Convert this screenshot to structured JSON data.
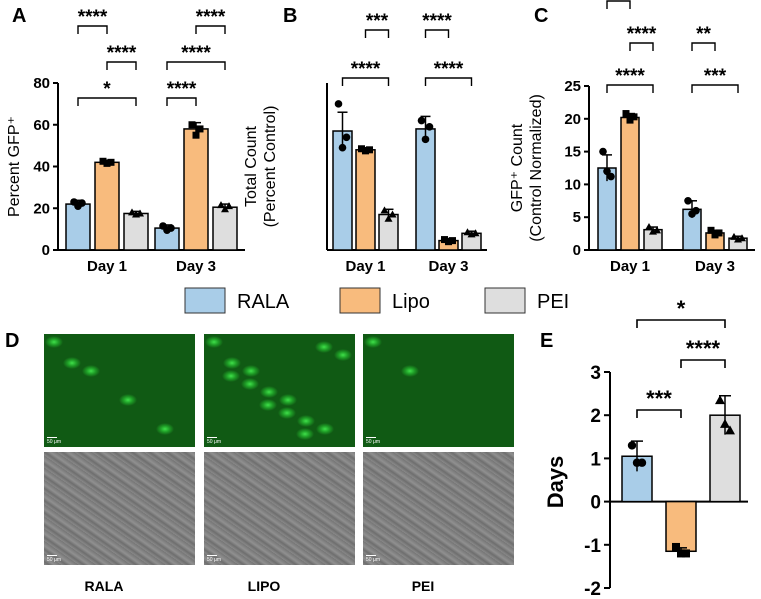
{
  "colors": {
    "rala": "#a9cde8",
    "lipo": "#f8bb7d",
    "pei": "#dedede"
  },
  "legend": [
    {
      "label": "RALA",
      "color": "#a9cde8"
    },
    {
      "label": "Lipo",
      "color": "#f8bb7d"
    },
    {
      "label": "PEI",
      "color": "#dedede"
    }
  ],
  "chart_data": [
    {
      "panel": "A",
      "type": "bar",
      "ylabel": "Percent GFP⁺",
      "ylim": [
        0,
        80
      ],
      "yticks": [
        0,
        20,
        40,
        60,
        80
      ],
      "categories": [
        "Day 1",
        "Day 3"
      ],
      "series": [
        {
          "name": "RALA",
          "values": [
            22,
            10.5
          ],
          "err": [
            1.8,
            1.5
          ],
          "points": [
            [
              23,
              21,
              22.5
            ],
            [
              11.5,
              9.5,
              10.5
            ]
          ]
        },
        {
          "name": "Lipo",
          "values": [
            42,
            58
          ],
          "err": [
            1,
            3
          ],
          "points": [
            [
              42.5,
              41.5,
              42
            ],
            [
              60,
              55,
              58
            ]
          ]
        },
        {
          "name": "PEI",
          "values": [
            17.5,
            20.5
          ],
          "err": [
            1,
            1.5
          ],
          "points": [
            [
              18,
              17,
              17.5
            ],
            [
              21.5,
              19.5,
              21
            ]
          ]
        }
      ],
      "significance": [
        {
          "group": 0,
          "from": 0,
          "to": 2,
          "label": "*"
        },
        {
          "group": 0,
          "from": 1,
          "to": 2,
          "label": "****"
        },
        {
          "group": 0,
          "from": 0,
          "to": 1,
          "label": "****"
        },
        {
          "group": 1,
          "from": 0,
          "to": 1,
          "label": "****"
        },
        {
          "group": 1,
          "from": 0,
          "to": 2,
          "label": "****"
        },
        {
          "group": 1,
          "from": 1,
          "to": 2,
          "label": "****"
        }
      ]
    },
    {
      "panel": "B",
      "type": "bar",
      "ylabel": "Total Count",
      "ylabel2": "(Percent Control)",
      "ylim": [
        0,
        80
      ],
      "yticks": [],
      "categories": [
        "Day 1",
        "Day 3"
      ],
      "series": [
        {
          "name": "RALA",
          "values": [
            57,
            58
          ],
          "err": [
            9,
            6
          ],
          "points": [
            [
              70,
              49,
              54
            ],
            [
              62,
              53,
              59
            ]
          ]
        },
        {
          "name": "Lipo",
          "values": [
            48,
            4.5
          ],
          "err": [
            1,
            1
          ],
          "points": [
            [
              48.5,
              47.5,
              48
            ],
            [
              5,
              4,
              4.5
            ]
          ]
        },
        {
          "name": "PEI",
          "values": [
            17,
            8
          ],
          "err": [
            2.5,
            1
          ],
          "points": [
            [
              19,
              15,
              17
            ],
            [
              8.5,
              7.5,
              8
            ]
          ]
        }
      ],
      "significance": [
        {
          "group": 0,
          "from": 0,
          "to": 2,
          "label": "****"
        },
        {
          "group": 0,
          "from": 1,
          "to": 2,
          "label": "***"
        },
        {
          "group": 1,
          "from": 0,
          "to": 2,
          "label": "****"
        },
        {
          "group": 1,
          "from": 0,
          "to": 1,
          "label": "****"
        }
      ]
    },
    {
      "panel": "C",
      "type": "bar",
      "ylabel": "GFP⁺ Count",
      "ylabel2": "(Control Normalized)",
      "ylim": [
        0,
        25
      ],
      "yticks": [
        0,
        5,
        10,
        15,
        20,
        25
      ],
      "categories": [
        "Day 1",
        "Day 3"
      ],
      "series": [
        {
          "name": "RALA",
          "values": [
            12.5,
            6.2
          ],
          "err": [
            2,
            1.3
          ],
          "points": [
            [
              15,
              12,
              11.2
            ],
            [
              7.5,
              5.5,
              6
            ]
          ]
        },
        {
          "name": "Lipo",
          "values": [
            20.2,
            2.6
          ],
          "err": [
            0.6,
            0.4
          ],
          "points": [
            [
              20.8,
              19.8,
              20.3
            ],
            [
              3,
              2.3,
              2.6
            ]
          ]
        },
        {
          "name": "PEI",
          "values": [
            3.1,
            1.8
          ],
          "err": [
            0.4,
            0.3
          ],
          "points": [
            [
              3.5,
              2.8,
              3
            ],
            [
              2,
              1.6,
              1.8
            ]
          ]
        }
      ],
      "significance": [
        {
          "group": 0,
          "from": 0,
          "to": 2,
          "label": "****"
        },
        {
          "group": 0,
          "from": 1,
          "to": 2,
          "label": "****"
        },
        {
          "group": 0,
          "from": 0,
          "to": 1,
          "label": "****"
        },
        {
          "group": 1,
          "from": 0,
          "to": 2,
          "label": "***"
        },
        {
          "group": 1,
          "from": 0,
          "to": 1,
          "label": "**"
        }
      ]
    },
    {
      "panel": "E",
      "type": "bar",
      "ylabel": "Days",
      "ylim": [
        -2,
        3
      ],
      "yticks": [
        -2,
        -1,
        0,
        1,
        2,
        3
      ],
      "categories": [
        "RALA",
        "Lipo",
        "PEI"
      ],
      "values": [
        1.05,
        -1.15,
        2.0
      ],
      "err": [
        0.35,
        0.08,
        0.45
      ],
      "points": [
        [
          1.3,
          0.9,
          0.9
        ],
        [
          -1.05,
          -1.2,
          -1.2
        ],
        [
          2.35,
          1.8,
          1.65
        ]
      ],
      "colors": [
        "#a9cde8",
        "#f8bb7d",
        "#dedede"
      ],
      "significance": [
        {
          "from": 0,
          "to": 1,
          "label": "***"
        },
        {
          "from": 1,
          "to": 2,
          "label": "****"
        },
        {
          "from": 0,
          "to": 2,
          "label": "*"
        }
      ]
    }
  ],
  "panels": {
    "a": "A",
    "b": "B",
    "c": "C",
    "d": "D",
    "e": "E"
  },
  "microscopy": {
    "scale_text": "50 μm",
    "columns": [
      "RALA",
      "LIPO",
      "PEI"
    ]
  }
}
